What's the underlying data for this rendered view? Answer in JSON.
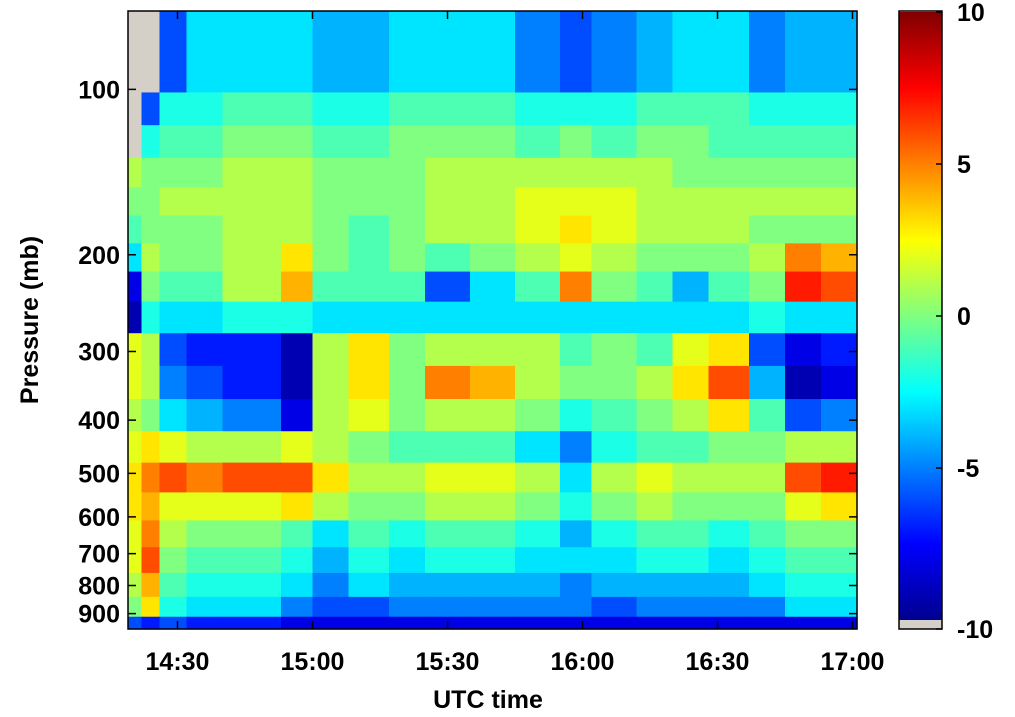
{
  "chart_data": {
    "type": "heatmap",
    "title": "",
    "xlabel": "UTC time",
    "ylabel": "Pressure (mb)",
    "x_tick_labels": [
      "14:30",
      "15:00",
      "15:30",
      "16:00",
      "16:30",
      "17:00"
    ],
    "x_tick_minutes": [
      870,
      900,
      930,
      960,
      990,
      1020
    ],
    "xlim_minutes": [
      859,
      1021
    ],
    "y_scale": "log",
    "y_tick_labels": [
      "100",
      "200",
      "300",
      "400",
      "500",
      "600",
      "700",
      "800",
      "900"
    ],
    "y_tick_values": [
      100,
      200,
      300,
      400,
      500,
      600,
      700,
      800,
      900
    ],
    "ylim": [
      72,
      960
    ],
    "y_reversed": true,
    "colorbar": {
      "colormap": "jet",
      "min": -10,
      "max": 10,
      "tick_labels": [
        "10",
        "5",
        "0",
        "-5",
        "-10"
      ],
      "tick_values": [
        10,
        5,
        0,
        -5,
        -10
      ],
      "missing_color": "#d4d0c8"
    },
    "missing_color": "#d4d0c8",
    "level_pressures": [
      95,
      108,
      125,
      142,
      160,
      180,
      202,
      228,
      260,
      297,
      342,
      392,
      448,
      510,
      575,
      645,
      720,
      800,
      880,
      945
    ],
    "time_segment_start_minutes": [
      859,
      862,
      866,
      872,
      880,
      893,
      900,
      908,
      917,
      925,
      935,
      945,
      955,
      962,
      972,
      980,
      988,
      997,
      1005,
      1013
    ],
    "time_segment_values": [
      [
        null,
        null,
        -6,
        -3,
        -3,
        -3,
        -4,
        -4,
        -3,
        -3,
        -3,
        -5,
        -6,
        -5,
        -4,
        -3,
        -3,
        -5,
        -4,
        -4
      ],
      [
        null,
        -6,
        -2,
        -2,
        -1,
        -1,
        -2,
        -2,
        -1,
        -1,
        -1,
        -2,
        -2,
        -2,
        -1,
        -1,
        -1,
        -2,
        -2,
        -2
      ],
      [
        null,
        -2,
        -1,
        -1,
        0,
        0,
        -1,
        -1,
        0,
        0,
        0,
        -1,
        0,
        -1,
        0,
        0,
        -1,
        -1,
        -1,
        -1
      ],
      [
        1,
        0,
        0,
        0,
        1,
        1,
        0,
        0,
        0,
        1,
        1,
        1,
        1,
        1,
        1,
        0,
        0,
        0,
        0,
        0
      ],
      [
        0,
        0,
        1,
        1,
        1,
        1,
        0,
        0,
        0,
        1,
        1,
        2,
        2,
        2,
        1,
        1,
        1,
        1,
        1,
        1
      ],
      [
        -1,
        0,
        0,
        0,
        1,
        1,
        0,
        -1,
        0,
        1,
        1,
        2,
        3,
        2,
        1,
        1,
        1,
        0,
        0,
        0
      ],
      [
        -3,
        1,
        0,
        0,
        1,
        3,
        0,
        -1,
        0,
        -1,
        0,
        1,
        2,
        1,
        0,
        0,
        0,
        1,
        5,
        4
      ],
      [
        -8,
        0,
        -1,
        -1,
        1,
        4,
        -1,
        -1,
        -1,
        -6,
        -3,
        -1,
        5,
        0,
        -1,
        -4,
        -1,
        0,
        7,
        6
      ],
      [
        -9,
        -2,
        -3,
        -3,
        -2,
        -2,
        -3,
        -3,
        -3,
        -3,
        -3,
        -3,
        -3,
        -3,
        -3,
        -3,
        -3,
        -2,
        -3,
        -3
      ],
      [
        2,
        1,
        -6,
        -7,
        -7,
        -9,
        1,
        3,
        0,
        1,
        1,
        1,
        -1,
        0,
        -1,
        2,
        3,
        -6,
        -8,
        -7
      ],
      [
        2,
        1,
        -5,
        -6,
        -7,
        -9,
        1,
        3,
        0,
        5,
        4,
        1,
        0,
        0,
        1,
        3,
        6,
        -4,
        -9,
        -8
      ],
      [
        1,
        0,
        -3,
        -4,
        -5,
        -8,
        1,
        2,
        0,
        1,
        1,
        0,
        -2,
        -1,
        0,
        1,
        3,
        -1,
        -6,
        -5
      ],
      [
        2,
        3,
        2,
        1,
        1,
        2,
        1,
        0,
        -1,
        -1,
        -1,
        -3,
        -5,
        -2,
        -1,
        -1,
        0,
        0,
        1,
        1
      ],
      [
        3,
        5,
        6,
        5,
        6,
        6,
        3,
        1,
        1,
        2,
        2,
        1,
        -3,
        1,
        2,
        1,
        1,
        1,
        6,
        7
      ],
      [
        3,
        4,
        2,
        2,
        2,
        3,
        1,
        0,
        0,
        1,
        1,
        0,
        -2,
        0,
        1,
        0,
        0,
        0,
        2,
        3
      ],
      [
        2,
        5,
        1,
        0,
        0,
        -1,
        -3,
        -1,
        -2,
        -1,
        -1,
        -2,
        -4,
        -2,
        -1,
        -1,
        -2,
        -1,
        0,
        0
      ],
      [
        2,
        6,
        0,
        -1,
        -1,
        -2,
        -4,
        -2,
        -3,
        -2,
        -2,
        -3,
        -3,
        -3,
        -2,
        -2,
        -3,
        -2,
        -1,
        -1
      ],
      [
        1,
        4,
        -1,
        -2,
        -2,
        -3,
        -5,
        -3,
        -4,
        -4,
        -4,
        -4,
        -5,
        -4,
        -4,
        -4,
        -4,
        -3,
        -2,
        -2
      ],
      [
        0,
        3,
        -2,
        -3,
        -3,
        -5,
        -6,
        -6,
        -5,
        -5,
        -5,
        -5,
        -5,
        -6,
        -5,
        -5,
        -5,
        -5,
        -3,
        -3
      ],
      [
        -6,
        -7,
        -6,
        -7,
        -7,
        -8,
        -8,
        -8,
        -8,
        -8,
        -8,
        -8,
        -8,
        -8,
        -8,
        -8,
        -8,
        -8,
        -8,
        -8
      ]
    ]
  }
}
